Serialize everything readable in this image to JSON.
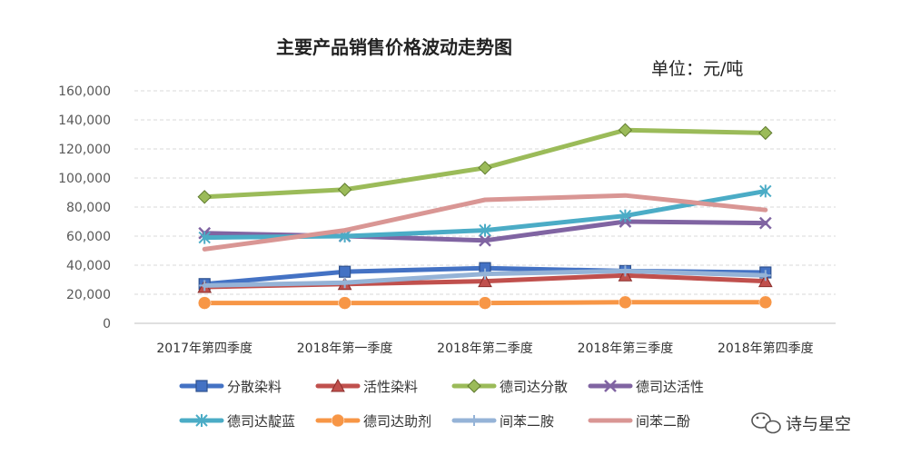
{
  "chart_data": {
    "type": "line",
    "title": "主要产品销售价格波动走势图",
    "unit_label": "单位：元/吨",
    "categories": [
      "2017年第四季度",
      "2018年第一季度",
      "2018年第二季度",
      "2018年第三季度",
      "2018年第四季度"
    ],
    "ylim": [
      0,
      160000
    ],
    "yticks": [
      "0",
      "20,000",
      "40,000",
      "60,000",
      "80,000",
      "100,000",
      "120,000",
      "140,000",
      "160,000"
    ],
    "grid": true,
    "legend_position": "bottom",
    "series": [
      {
        "name": "分散染料",
        "values": [
          27000,
          35500,
          38000,
          36000,
          35000
        ],
        "color": "#4472C4",
        "marker": "square"
      },
      {
        "name": "活性染料",
        "values": [
          25000,
          27000,
          29000,
          33000,
          29000
        ],
        "color": "#C0504D",
        "marker": "triangle"
      },
      {
        "name": "德司达分散",
        "values": [
          87000,
          92000,
          107000,
          133000,
          131000
        ],
        "color": "#9BBB59",
        "marker": "diamond"
      },
      {
        "name": "德司达活性",
        "values": [
          62000,
          60000,
          57000,
          70000,
          69000
        ],
        "color": "#8064A2",
        "marker": "x"
      },
      {
        "name": "德司达靛蓝",
        "values": [
          59000,
          60000,
          64000,
          74000,
          91000
        ],
        "color": "#4BACC6",
        "marker": "star"
      },
      {
        "name": "德司达助剂",
        "values": [
          14000,
          14000,
          14000,
          14500,
          14500
        ],
        "color": "#F79646",
        "marker": "circle"
      },
      {
        "name": "间苯二胺",
        "values": [
          26000,
          28000,
          34000,
          36000,
          33000
        ],
        "color": "#95B3D7",
        "marker": "plus"
      },
      {
        "name": "间苯二酚",
        "values": [
          51000,
          64000,
          85000,
          88000,
          78000
        ],
        "color": "#D99694",
        "marker": "none"
      }
    ]
  },
  "watermark": {
    "icon": "wechat-icon",
    "text": "诗与星空"
  }
}
